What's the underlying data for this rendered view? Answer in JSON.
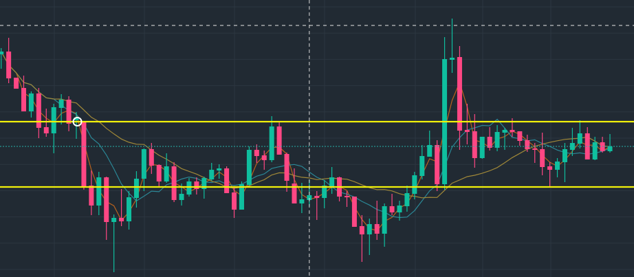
{
  "chart_data": {
    "type": "candlestick",
    "title": "",
    "xlabel": "",
    "ylabel": "",
    "ylim": [
      0,
      403
    ],
    "grid": true,
    "candles": [
      [
        324,
        333,
        303,
        328
      ],
      [
        328,
        348,
        282,
        289
      ],
      [
        290,
        290,
        274,
        274
      ],
      [
        275,
        293,
        241,
        241
      ],
      [
        241,
        270,
        232,
        267
      ],
      [
        267,
        275,
        202,
        217
      ],
      [
        218,
        245,
        204,
        209
      ],
      [
        209,
        252,
        180,
        247
      ],
      [
        246,
        266,
        222,
        258
      ],
      [
        258,
        263,
        212,
        223
      ],
      [
        228,
        240,
        201,
        232
      ],
      [
        225,
        225,
        127,
        131
      ],
      [
        133,
        155,
        90,
        104
      ],
      [
        104,
        153,
        90,
        145
      ],
      [
        145,
        146,
        54,
        80
      ],
      [
        80,
        91,
        7,
        86
      ],
      [
        86,
        128,
        74,
        81
      ],
      [
        81,
        125,
        69,
        116
      ],
      [
        115,
        154,
        101,
        143
      ],
      [
        143,
        187,
        125,
        186
      ],
      [
        186,
        195,
        150,
        162
      ],
      [
        163,
        164,
        130,
        139
      ],
      [
        139,
        180,
        137,
        161
      ],
      [
        161,
        167,
        109,
        112
      ],
      [
        112,
        136,
        104,
        121
      ],
      [
        120,
        144,
        117,
        139
      ],
      [
        139,
        145,
        120,
        128
      ],
      [
        128,
        146,
        114,
        144
      ],
      [
        142,
        166,
        140,
        156
      ],
      [
        155,
        164,
        143,
        158
      ],
      [
        158,
        161,
        122,
        122
      ],
      [
        123,
        131,
        86,
        98
      ],
      [
        98,
        139,
        98,
        135
      ],
      [
        134,
        190,
        133,
        185
      ],
      [
        185,
        193,
        166,
        176
      ],
      [
        177,
        184,
        156,
        170
      ],
      [
        170,
        234,
        167,
        219
      ],
      [
        219,
        225,
        178,
        178
      ],
      [
        179,
        181,
        124,
        140
      ],
      [
        136,
        158,
        107,
        107
      ],
      [
        107,
        137,
        93,
        113
      ],
      [
        112,
        142,
        103,
        119
      ],
      [
        118,
        125,
        83,
        115
      ],
      [
        115,
        141,
        100,
        133
      ],
      [
        132,
        160,
        121,
        145
      ],
      [
        145,
        146,
        110,
        117
      ],
      [
        118,
        125,
        102,
        116
      ],
      [
        117,
        117,
        73,
        73
      ],
      [
        74,
        90,
        22,
        62
      ],
      [
        62,
        85,
        32,
        77
      ],
      [
        77,
        111,
        54,
        63
      ],
      [
        63,
        107,
        44,
        103
      ],
      [
        103,
        121,
        90,
        94
      ],
      [
        94,
        111,
        82,
        104
      ],
      [
        103,
        133,
        95,
        122
      ],
      [
        121,
        153,
        113,
        148
      ],
      [
        147,
        192,
        142,
        176
      ],
      [
        175,
        213,
        175,
        192
      ],
      [
        192,
        199,
        125,
        135
      ],
      [
        135,
        349,
        127,
        317
      ],
      [
        316,
        376,
        297,
        319
      ],
      [
        320,
        336,
        185,
        213
      ],
      [
        214,
        252,
        193,
        211
      ],
      [
        212,
        237,
        159,
        173
      ],
      [
        173,
        204,
        172,
        204
      ],
      [
        204,
        218,
        184,
        188
      ],
      [
        188,
        221,
        183,
        211
      ],
      [
        210,
        217,
        185,
        214
      ],
      [
        214,
        231,
        204,
        211
      ],
      [
        212,
        212,
        191,
        198
      ],
      [
        199,
        207,
        182,
        186
      ],
      [
        187,
        195,
        166,
        185
      ],
      [
        186,
        210,
        148,
        160
      ],
      [
        161,
        167,
        130,
        156
      ],
      [
        156,
        173,
        145,
        168
      ],
      [
        167,
        195,
        138,
        186
      ],
      [
        185,
        217,
        176,
        195
      ],
      [
        194,
        228,
        187,
        209
      ],
      [
        209,
        218,
        171,
        171
      ],
      [
        171,
        204,
        170,
        196
      ],
      [
        196,
        204,
        181,
        183
      ],
      [
        183,
        208,
        181,
        190
      ]
    ],
    "horizontal_levels": [
      {
        "kind": "support-resistance",
        "price": 226,
        "color": "#f2f20a"
      },
      {
        "kind": "support-resistance",
        "price": 131,
        "color": "#f2f20a"
      },
      {
        "kind": "dashed-level",
        "price": 366,
        "color": "#e6e6e6"
      },
      {
        "kind": "last-price",
        "price": 190,
        "color": "#26b3a8"
      }
    ],
    "crosshair_candle_index": 41,
    "marker": {
      "candle_index": 10,
      "price": 226
    },
    "moving_averages": [
      {
        "color": "#b8621e"
      },
      {
        "color": "#2b8796"
      },
      {
        "color": "#a08838"
      }
    ],
    "colors": {
      "background": "#212a33",
      "grid": "#2c3640",
      "up": "#0fbf9f",
      "down": "#ff4784"
    }
  }
}
